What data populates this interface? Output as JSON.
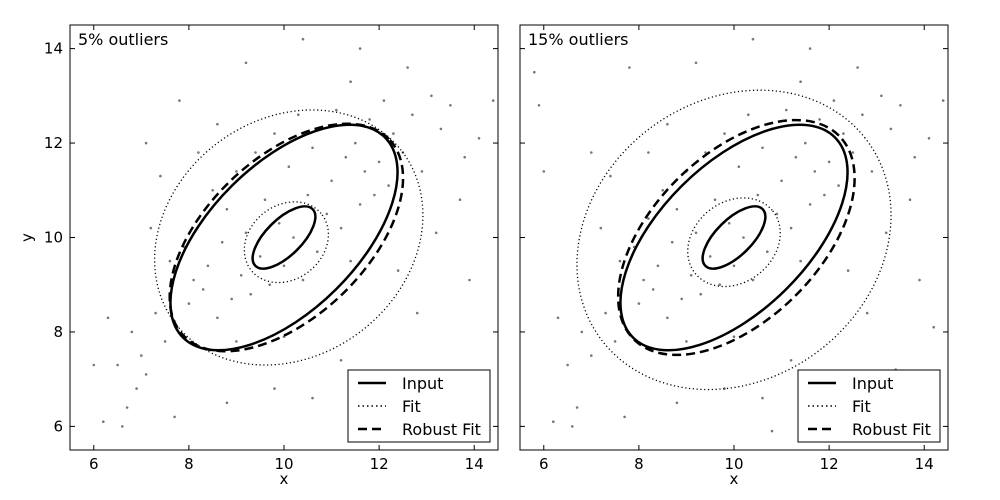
{
  "chart_data": [
    {
      "type": "scatter",
      "title": "5% outliers",
      "xlabel": "x",
      "ylabel": "y",
      "xlim": [
        5.5,
        14.5
      ],
      "ylim": [
        5.5,
        14.5
      ],
      "xticks": [
        6,
        8,
        10,
        12,
        14
      ],
      "yticks": [
        6,
        8,
        10,
        12,
        14
      ],
      "grid": false,
      "legend_position": "bottom-right",
      "point_color": "#777777",
      "ellipses": [
        {
          "name": "Input",
          "style": "solid",
          "center": [
            10.0,
            10.0
          ],
          "semi_axes": [
            0.85,
            0.38
          ],
          "angle_deg": 45
        },
        {
          "name": "Input",
          "style": "solid",
          "center": [
            10.0,
            10.0
          ],
          "semi_axes": [
            3.0,
            1.55
          ],
          "angle_deg": 45
        },
        {
          "name": "Fit",
          "style": "dotted",
          "center": [
            10.05,
            9.9
          ],
          "semi_axes": [
            0.95,
            0.78
          ],
          "angle_deg": 40
        },
        {
          "name": "Fit",
          "style": "dotted",
          "center": [
            10.1,
            10.0
          ],
          "semi_axes": [
            3.0,
            2.5
          ],
          "angle_deg": 38
        },
        {
          "name": "Robust Fit",
          "style": "dashed",
          "center": [
            10.05,
            10.0
          ],
          "semi_axes": [
            3.0,
            1.68
          ],
          "angle_deg": 44
        }
      ],
      "points": [
        [
          6.0,
          7.3
        ],
        [
          6.2,
          6.1
        ],
        [
          6.3,
          8.3
        ],
        [
          6.5,
          7.3
        ],
        [
          6.6,
          6.0
        ],
        [
          6.7,
          6.4
        ],
        [
          6.8,
          8.0
        ],
        [
          6.9,
          6.8
        ],
        [
          7.0,
          7.5
        ],
        [
          7.1,
          7.1
        ],
        [
          7.2,
          10.2
        ],
        [
          7.3,
          8.4
        ],
        [
          7.5,
          7.8
        ],
        [
          7.6,
          9.5
        ],
        [
          7.7,
          6.2
        ],
        [
          7.8,
          12.9
        ],
        [
          7.9,
          9.8
        ],
        [
          8.0,
          8.6
        ],
        [
          8.1,
          9.1
        ],
        [
          8.2,
          10.4
        ],
        [
          8.3,
          8.9
        ],
        [
          8.4,
          9.4
        ],
        [
          8.5,
          11.0
        ],
        [
          8.6,
          8.3
        ],
        [
          8.7,
          9.9
        ],
        [
          8.8,
          10.6
        ],
        [
          8.9,
          8.7
        ],
        [
          9.0,
          11.4
        ],
        [
          9.1,
          9.2
        ],
        [
          9.2,
          10.1
        ],
        [
          9.3,
          8.8
        ],
        [
          9.4,
          11.8
        ],
        [
          9.5,
          9.6
        ],
        [
          9.6,
          10.8
        ],
        [
          9.7,
          9.0
        ],
        [
          9.8,
          12.2
        ],
        [
          9.9,
          10.3
        ],
        [
          10.0,
          9.4
        ],
        [
          10.1,
          11.5
        ],
        [
          10.2,
          10.0
        ],
        [
          10.3,
          12.6
        ],
        [
          10.4,
          9.1
        ],
        [
          10.5,
          10.9
        ],
        [
          10.6,
          11.9
        ],
        [
          10.7,
          9.7
        ],
        [
          10.8,
          12.3
        ],
        [
          10.9,
          10.5
        ],
        [
          11.0,
          11.2
        ],
        [
          11.1,
          12.7
        ],
        [
          11.2,
          10.2
        ],
        [
          11.3,
          11.7
        ],
        [
          11.4,
          9.5
        ],
        [
          11.5,
          12.0
        ],
        [
          11.6,
          10.7
        ],
        [
          11.7,
          11.4
        ],
        [
          11.8,
          12.5
        ],
        [
          11.9,
          10.9
        ],
        [
          12.0,
          11.6
        ],
        [
          12.1,
          12.9
        ],
        [
          12.2,
          11.1
        ],
        [
          12.3,
          12.2
        ],
        [
          12.5,
          11.8
        ],
        [
          12.7,
          12.6
        ],
        [
          12.9,
          11.4
        ],
        [
          13.1,
          13.0
        ],
        [
          13.3,
          12.3
        ],
        [
          13.5,
          12.8
        ],
        [
          13.8,
          11.7
        ],
        [
          14.1,
          12.1
        ],
        [
          14.4,
          12.9
        ],
        [
          8.6,
          12.4
        ],
        [
          9.2,
          13.7
        ],
        [
          10.4,
          14.2
        ],
        [
          11.6,
          14.0
        ],
        [
          12.4,
          9.3
        ],
        [
          12.8,
          8.4
        ],
        [
          11.2,
          7.4
        ],
        [
          9.8,
          6.8
        ],
        [
          8.8,
          6.5
        ],
        [
          10.6,
          6.6
        ],
        [
          7.4,
          11.3
        ],
        [
          7.1,
          12.0
        ],
        [
          13.2,
          10.1
        ],
        [
          13.7,
          10.8
        ],
        [
          11.4,
          13.3
        ],
        [
          12.6,
          13.6
        ],
        [
          9.0,
          7.8
        ],
        [
          10.0,
          7.9
        ],
        [
          8.2,
          11.8
        ],
        [
          13.9,
          9.1
        ]
      ]
    },
    {
      "type": "scatter",
      "title": "15% outliers",
      "xlabel": "x",
      "ylabel": "",
      "xlim": [
        5.5,
        14.5
      ],
      "ylim": [
        5.5,
        14.5
      ],
      "xticks": [
        6,
        8,
        10,
        12,
        14
      ],
      "yticks": [
        6,
        8,
        10,
        12,
        14
      ],
      "grid": false,
      "legend_position": "bottom-right",
      "point_color": "#777777",
      "ellipses": [
        {
          "name": "Input",
          "style": "solid",
          "center": [
            10.0,
            10.0
          ],
          "semi_axes": [
            0.85,
            0.38
          ],
          "angle_deg": 45
        },
        {
          "name": "Input",
          "style": "solid",
          "center": [
            10.0,
            10.0
          ],
          "semi_axes": [
            3.0,
            1.55
          ],
          "angle_deg": 45
        },
        {
          "name": "Fit",
          "style": "dotted",
          "center": [
            10.0,
            9.9
          ],
          "semi_axes": [
            1.05,
            0.85
          ],
          "angle_deg": 40
        },
        {
          "name": "Fit",
          "style": "dotted",
          "center": [
            10.0,
            9.95
          ],
          "semi_axes": [
            3.5,
            2.95
          ],
          "angle_deg": 38
        },
        {
          "name": "Robust Fit",
          "style": "dashed",
          "center": [
            10.05,
            10.0
          ],
          "semi_axes": [
            3.05,
            1.75
          ],
          "angle_deg": 45
        }
      ],
      "points": [
        [
          5.8,
          13.5
        ],
        [
          5.9,
          12.8
        ],
        [
          6.0,
          11.4
        ],
        [
          6.2,
          6.1
        ],
        [
          6.3,
          8.3
        ],
        [
          6.5,
          7.3
        ],
        [
          6.6,
          6.0
        ],
        [
          6.7,
          6.4
        ],
        [
          6.8,
          8.0
        ],
        [
          7.0,
          7.5
        ],
        [
          7.0,
          11.8
        ],
        [
          7.2,
          10.2
        ],
        [
          7.3,
          8.4
        ],
        [
          7.5,
          7.8
        ],
        [
          7.6,
          9.5
        ],
        [
          7.7,
          6.2
        ],
        [
          7.8,
          13.6
        ],
        [
          7.9,
          9.8
        ],
        [
          8.0,
          8.6
        ],
        [
          8.1,
          9.1
        ],
        [
          8.2,
          10.4
        ],
        [
          8.3,
          8.9
        ],
        [
          8.4,
          9.4
        ],
        [
          8.5,
          11.0
        ],
        [
          8.6,
          8.3
        ],
        [
          8.7,
          9.9
        ],
        [
          8.8,
          10.6
        ],
        [
          8.9,
          8.7
        ],
        [
          9.0,
          11.4
        ],
        [
          9.1,
          9.2
        ],
        [
          9.2,
          10.1
        ],
        [
          9.3,
          8.8
        ],
        [
          9.4,
          11.8
        ],
        [
          9.5,
          9.6
        ],
        [
          9.6,
          10.8
        ],
        [
          9.7,
          9.0
        ],
        [
          9.8,
          12.2
        ],
        [
          9.9,
          10.3
        ],
        [
          10.0,
          9.4
        ],
        [
          10.1,
          11.5
        ],
        [
          10.2,
          10.0
        ],
        [
          10.3,
          12.6
        ],
        [
          10.4,
          9.1
        ],
        [
          10.5,
          10.9
        ],
        [
          10.6,
          11.9
        ],
        [
          10.7,
          9.7
        ],
        [
          10.8,
          12.3
        ],
        [
          10.9,
          10.5
        ],
        [
          11.0,
          11.2
        ],
        [
          11.1,
          12.7
        ],
        [
          11.2,
          10.2
        ],
        [
          11.3,
          11.7
        ],
        [
          11.4,
          9.5
        ],
        [
          11.5,
          12.0
        ],
        [
          11.6,
          10.7
        ],
        [
          11.7,
          11.4
        ],
        [
          11.8,
          12.5
        ],
        [
          11.9,
          10.9
        ],
        [
          12.0,
          11.6
        ],
        [
          12.1,
          12.9
        ],
        [
          12.2,
          11.1
        ],
        [
          12.3,
          12.2
        ],
        [
          12.5,
          11.8
        ],
        [
          12.7,
          12.6
        ],
        [
          12.9,
          11.4
        ],
        [
          13.1,
          13.0
        ],
        [
          13.3,
          12.3
        ],
        [
          13.5,
          12.8
        ],
        [
          13.8,
          11.7
        ],
        [
          14.1,
          12.1
        ],
        [
          14.4,
          12.9
        ],
        [
          8.6,
          12.4
        ],
        [
          9.2,
          13.7
        ],
        [
          10.4,
          14.2
        ],
        [
          11.6,
          14.0
        ],
        [
          12.4,
          9.3
        ],
        [
          12.8,
          8.4
        ],
        [
          11.2,
          7.4
        ],
        [
          9.8,
          6.8
        ],
        [
          8.8,
          6.5
        ],
        [
          10.6,
          6.6
        ],
        [
          7.4,
          11.3
        ],
        [
          13.2,
          10.1
        ],
        [
          13.7,
          10.8
        ],
        [
          11.4,
          13.3
        ],
        [
          12.6,
          13.6
        ],
        [
          9.0,
          7.8
        ],
        [
          10.0,
          7.9
        ],
        [
          8.2,
          11.8
        ],
        [
          13.9,
          9.1
        ],
        [
          12.3,
          5.8
        ],
        [
          12.7,
          6.3
        ],
        [
          13.4,
          7.2
        ],
        [
          14.2,
          8.1
        ],
        [
          11.8,
          6.8
        ],
        [
          10.8,
          5.9
        ]
      ]
    }
  ],
  "legend": {
    "entries": [
      {
        "label": "Input",
        "style": "solid"
      },
      {
        "label": "Fit",
        "style": "dotted"
      },
      {
        "label": "Robust Fit",
        "style": "dashed"
      }
    ]
  }
}
